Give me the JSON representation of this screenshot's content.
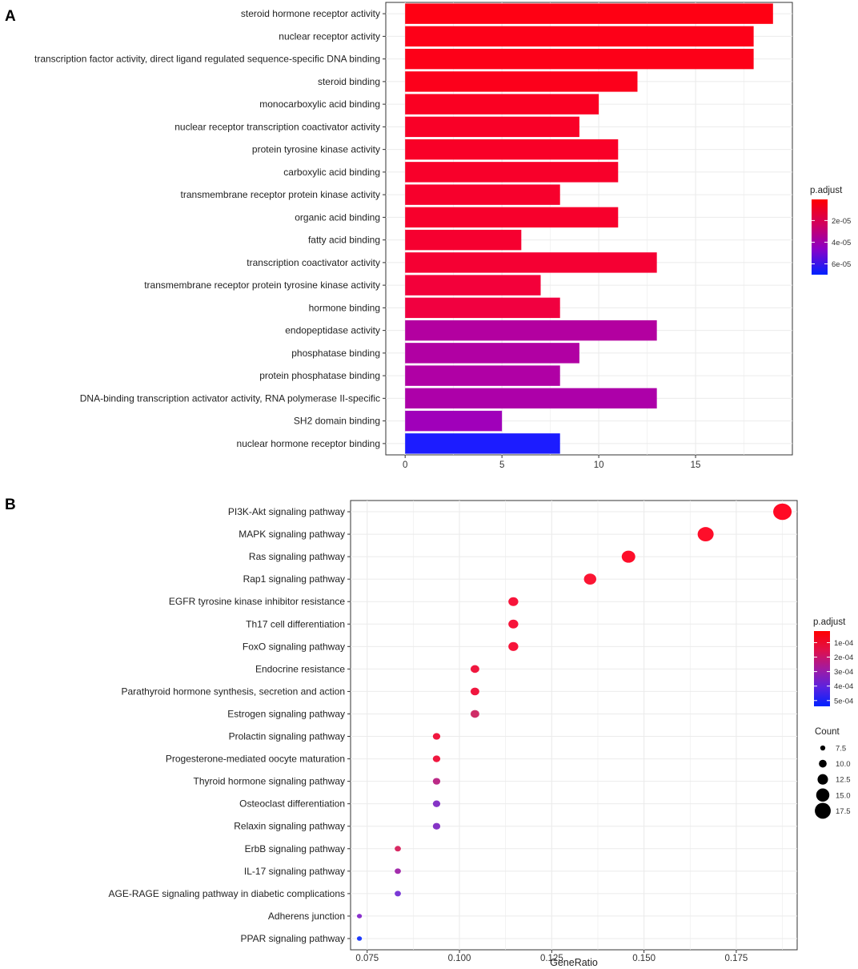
{
  "chart_data": [
    {
      "panel": "A",
      "type": "bar",
      "orientation": "horizontal",
      "categories": [
        "steroid hormone receptor activity",
        "nuclear receptor activity",
        "transcription factor activity, direct ligand regulated sequence-specific DNA binding",
        "steroid binding",
        "monocarboxylic acid binding",
        "nuclear receptor transcription coactivator activity",
        "protein tyrosine kinase activity",
        "carboxylic acid binding",
        "transmembrane receptor protein kinase activity",
        "organic acid binding",
        "fatty acid binding",
        "transcription coactivator activity",
        "transmembrane receptor protein tyrosine kinase activity",
        "hormone binding",
        "endopeptidase activity",
        "phosphatase binding",
        "protein phosphatase binding",
        "DNA-binding transcription activator activity, RNA polymerase II-specific",
        "SH2 domain binding",
        "nuclear hormone receptor binding"
      ],
      "values": [
        19,
        18,
        18,
        12,
        10,
        9,
        11,
        11,
        8,
        11,
        6,
        13,
        7,
        8,
        13,
        9,
        8,
        13,
        5,
        8
      ],
      "p_adjust": [
        5e-07,
        1e-06,
        1e-06,
        2e-06,
        3e-06,
        4e-06,
        4e-06,
        5e-06,
        6e-06,
        6e-06,
        7e-06,
        8e-06,
        1e-05,
        1.2e-05,
        4.5e-05,
        4.5e-05,
        4.6e-05,
        4.7e-05,
        5e-05,
        7e-05
      ],
      "bar_colors": [
        "#ff0013",
        "#fd0018",
        "#fd0018",
        "#fc001b",
        "#fa0022",
        "#f90027",
        "#f90027",
        "#f8002a",
        "#f7002c",
        "#f7002c",
        "#f60030",
        "#f50033",
        "#f3003a",
        "#f10040",
        "#b300a0",
        "#b100a3",
        "#b000a5",
        "#ad00a9",
        "#a000ba",
        "#1c1cff"
      ],
      "xlim": [
        -1,
        20
      ],
      "xticks": [
        "0",
        "5",
        "10",
        "15"
      ],
      "xtick_values": [
        0,
        5,
        10,
        15
      ],
      "xlabel": "",
      "legend": {
        "title": "p.adjust",
        "ticks": [
          "2e-05",
          "4e-05",
          "6e-05"
        ],
        "tick_values": [
          2e-05,
          4e-05,
          6e-05
        ],
        "range": [
          5e-07,
          7e-05
        ],
        "placement": "right",
        "colors": [
          "#ff0000",
          "#d1005e",
          "#8a00c8",
          "#0022ff"
        ]
      }
    },
    {
      "panel": "B",
      "type": "scatter",
      "categories": [
        "PI3K-Akt signaling pathway",
        "MAPK signaling pathway",
        "Ras signaling pathway",
        "Rap1 signaling pathway",
        "EGFR tyrosine kinase inhibitor resistance",
        "Th17 cell differentiation",
        "FoxO signaling pathway",
        "Endocrine resistance",
        "Parathyroid hormone synthesis, secretion and action",
        "Estrogen signaling pathway",
        "Prolactin signaling pathway",
        "Progesterone-mediated oocyte maturation",
        "Thyroid hormone signaling pathway",
        "Osteoclast differentiation",
        "Relaxin signaling pathway",
        "ErbB signaling pathway",
        "IL-17 signaling pathway",
        "AGE-RAGE signaling pathway in diabetic complications",
        "Adherens junction",
        "PPAR signaling pathway"
      ],
      "x": [
        0.1875,
        0.1667,
        0.1458,
        0.1354,
        0.1146,
        0.1146,
        0.1146,
        0.1042,
        0.1042,
        0.1042,
        0.0938,
        0.0938,
        0.0938,
        0.0938,
        0.0938,
        0.0833,
        0.0833,
        0.0833,
        0.0729,
        0.0729
      ],
      "count": [
        18,
        16,
        14,
        13,
        11,
        11,
        11,
        10,
        10,
        10,
        9,
        9,
        9,
        9,
        9,
        8,
        8,
        8,
        7,
        7
      ],
      "p_adjust": [
        2e-05,
        2e-05,
        2e-05,
        3e-05,
        2e-05,
        2e-05,
        2e-05,
        3e-05,
        3e-05,
        0.00017,
        2e-05,
        3e-05,
        0.00023,
        0.00036,
        0.00036,
        0.00015,
        0.00029,
        0.00037,
        0.00035,
        0.00052
      ],
      "point_colors": [
        "#ff0a25",
        "#fe0e2a",
        "#fe0e2a",
        "#fb1533",
        "#f7143a",
        "#f7143a",
        "#f7143a",
        "#f0173f",
        "#f0173f",
        "#cf2d67",
        "#f0173f",
        "#f0173f",
        "#bb2a87",
        "#8534c6",
        "#8534c6",
        "#d82a63",
        "#a32dac",
        "#7a39d6",
        "#8a30cd",
        "#1f3bff"
      ],
      "xlim": [
        0.0705,
        0.1915
      ],
      "xticks": [
        "0.075",
        "0.100",
        "0.125",
        "0.150",
        "0.175"
      ],
      "xtick_values": [
        0.075,
        0.1,
        0.125,
        0.15,
        0.175
      ],
      "xlabel": "GeneRatio",
      "legend": {
        "title": "p.adjust",
        "ticks": [
          "1e-04",
          "2e-04",
          "3e-04",
          "4e-04",
          "5e-04"
        ],
        "tick_values": [
          0.0001,
          0.0002,
          0.0003,
          0.0004,
          0.0005
        ],
        "range": [
          2e-05,
          0.00054
        ],
        "placement": "right",
        "colors": [
          "#ff0000",
          "#e0104a",
          "#a21aa0",
          "#5a22e0",
          "#0022ff"
        ]
      },
      "size_legend": {
        "title": "Count",
        "ticks": [
          "7.5",
          "10.0",
          "12.5",
          "15.0",
          "17.5"
        ],
        "values": [
          7.5,
          10.0,
          12.5,
          15.0,
          17.5
        ]
      }
    }
  ]
}
